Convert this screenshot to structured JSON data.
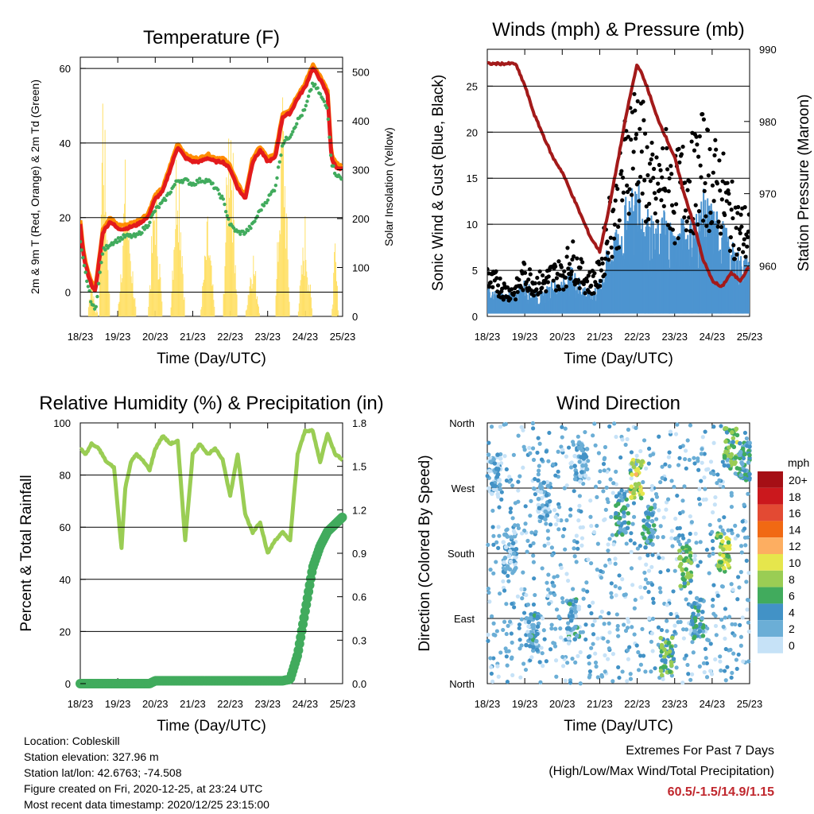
{
  "x_ticks": [
    "18/23",
    "19/23",
    "20/23",
    "21/23",
    "22/23",
    "23/23",
    "24/23",
    "25/23"
  ],
  "chart_data": [
    {
      "id": "temperature",
      "type": "line",
      "title": "Temperature (F)",
      "xlabel": "Time (Day/UTC)",
      "ylabel": "2m & 9m T (Red, Orange) & 2m Td (Green)",
      "ylabel_right": "Solar Insolation (Yellow)",
      "ylim": [
        -6.5,
        63
      ],
      "yticks": [
        0,
        20,
        40,
        60
      ],
      "ylim_right": [
        0,
        530
      ],
      "yticks_right": [
        0,
        100,
        200,
        300,
        400,
        500
      ],
      "gridlines": [
        0,
        20,
        40,
        60
      ],
      "x": [
        0,
        0.1,
        0.2,
        0.3,
        0.4,
        0.5,
        0.6,
        0.8,
        1,
        1.2,
        1.5,
        1.8,
        2,
        2.2,
        2.4,
        2.6,
        2.8,
        3,
        3.2,
        3.4,
        3.6,
        3.8,
        4,
        4.2,
        4.4,
        4.6,
        4.8,
        5,
        5.2,
        5.4,
        5.6,
        5.8,
        6,
        6.2,
        6.35,
        6.5,
        6.6,
        6.7,
        6.8,
        6.9,
        7
      ],
      "series": [
        {
          "name": "2m T",
          "color": "#e31a1c",
          "values": [
            18,
            9,
            5,
            2,
            0,
            8,
            16,
            19,
            17,
            17,
            18,
            20,
            25,
            27,
            33,
            39,
            36,
            35,
            35,
            36,
            35,
            35,
            33,
            28,
            25,
            35,
            38,
            35,
            36,
            47,
            48,
            52,
            55,
            60,
            58,
            55,
            53,
            36,
            34,
            33,
            33
          ]
        },
        {
          "name": "9m T",
          "color": "#ff8c00",
          "values": [
            19,
            10,
            6,
            3,
            1,
            9,
            17,
            20,
            18,
            18,
            19,
            21,
            26,
            28,
            34,
            40,
            37,
            36,
            36,
            37,
            36,
            36,
            34,
            29,
            26,
            36,
            39,
            36,
            37,
            48,
            49,
            53,
            56,
            61,
            59,
            56,
            54,
            37,
            35,
            34,
            34
          ]
        },
        {
          "name": "2m Td",
          "color": "#41ab5d",
          "values": [
            13,
            7,
            2,
            -3,
            -5,
            3,
            11,
            13,
            14,
            15,
            15,
            18,
            22,
            24,
            27,
            30,
            30,
            29,
            30,
            30,
            28,
            25,
            18,
            16,
            16,
            18,
            22,
            25,
            28,
            40,
            42,
            46,
            49,
            56,
            54,
            51,
            49,
            35,
            32,
            31,
            30
          ]
        },
        {
          "name": "Solar Insolation",
          "color": "#ffe066",
          "axis": "right",
          "values": [
            0,
            0,
            0,
            100,
            20,
            0,
            500,
            0,
            0,
            300,
            0,
            0,
            300,
            0,
            0,
            420,
            0,
            0,
            0,
            200,
            0,
            0,
            520,
            0,
            0,
            150,
            0,
            0,
            0,
            470,
            0,
            0,
            200,
            0,
            0,
            0,
            0,
            0,
            150,
            0,
            0
          ]
        }
      ]
    },
    {
      "id": "winds",
      "type": "scatter",
      "title": "Winds (mph) & Pressure (mb)",
      "xlabel": "Time (Day/UTC)",
      "ylabel": "Sonic Wind & Gust (Blue, Black)",
      "ylabel_right": "Station Pressure (Maroon)",
      "ylim": [
        0,
        29
      ],
      "yticks": [
        0,
        5,
        10,
        15,
        20,
        25
      ],
      "ylim_right": [
        953,
        990
      ],
      "yticks_right": [
        960,
        970,
        980,
        990
      ],
      "gridlines": [
        5,
        10,
        15,
        20,
        25
      ],
      "x": [
        0,
        0.1,
        0.25,
        0.5,
        0.75,
        1,
        1.25,
        1.5,
        1.75,
        2,
        2.25,
        2.5,
        2.75,
        3,
        3.25,
        3.5,
        3.75,
        4,
        4.25,
        4.5,
        4.75,
        5,
        5.25,
        5.5,
        5.75,
        6,
        6.25,
        6.5,
        6.75,
        7
      ],
      "series": [
        {
          "name": "Sonic Wind",
          "color": "#4d94d0",
          "values": [
            3,
            2,
            2,
            2,
            2,
            3,
            2,
            2,
            3,
            3,
            4,
            3,
            2,
            3,
            6,
            7,
            10,
            11,
            9,
            7,
            9,
            7,
            8,
            8,
            10,
            9,
            8,
            6,
            5,
            5
          ]
        },
        {
          "name": "Gust",
          "color": "#000000",
          "values": [
            5,
            4,
            4,
            3,
            3,
            5,
            4,
            4,
            5,
            5,
            7,
            5,
            4,
            5,
            11,
            13,
            20,
            22,
            17,
            14,
            17,
            14,
            16,
            16,
            18,
            16,
            15,
            12,
            10,
            10
          ]
        },
        {
          "name": "Station Pressure",
          "color": "#a31a1a",
          "axis": "right",
          "values": [
            988,
            988,
            988,
            988,
            988,
            985,
            981,
            978,
            975,
            973,
            970,
            967,
            964,
            962,
            968,
            975,
            982,
            988,
            985,
            981,
            978,
            975,
            970,
            966,
            961,
            958,
            957,
            959,
            958,
            960
          ]
        }
      ]
    },
    {
      "id": "humidity",
      "type": "line",
      "title": "Relative Humidity (%) & Precipitation (in)",
      "xlabel": "Time (Day/UTC)",
      "ylabel": "Percent & Total Rainfall",
      "ylim": [
        0,
        100
      ],
      "yticks": [
        0,
        20,
        40,
        60,
        80,
        100
      ],
      "ylim_right": [
        0,
        1.8
      ],
      "yticks_right": [
        0.0,
        0.3,
        0.6,
        0.9,
        1.2,
        1.5,
        1.8
      ],
      "gridlines": [
        20,
        40,
        60,
        80
      ],
      "x": [
        0,
        0.15,
        0.3,
        0.5,
        0.7,
        0.9,
        1.1,
        1.2,
        1.35,
        1.5,
        1.7,
        1.85,
        2,
        2.2,
        2.4,
        2.6,
        2.8,
        3,
        3.2,
        3.4,
        3.6,
        3.8,
        4,
        4.2,
        4.4,
        4.6,
        4.8,
        5,
        5.2,
        5.4,
        5.6,
        5.8,
        6,
        6.2,
        6.4,
        6.6,
        6.8,
        7
      ],
      "series": [
        {
          "name": "Relative Humidity",
          "color": "#9acd54",
          "values": [
            90,
            88,
            92,
            90,
            85,
            83,
            52,
            75,
            85,
            88,
            85,
            82,
            90,
            95,
            92,
            93,
            55,
            88,
            92,
            88,
            90,
            86,
            72,
            88,
            65,
            58,
            62,
            50,
            55,
            58,
            55,
            88,
            97,
            97,
            85,
            96,
            88,
            86
          ]
        },
        {
          "name": "Total Precipitation",
          "color": "#41ab5d",
          "axis": "right",
          "values": [
            0,
            0,
            0,
            0,
            0,
            0,
            0,
            0,
            0,
            0,
            0,
            0,
            0.02,
            0.02,
            0.02,
            0.02,
            0.02,
            0.02,
            0.02,
            0.02,
            0.02,
            0.02,
            0.02,
            0.02,
            0.02,
            0.02,
            0.02,
            0.02,
            0.02,
            0.02,
            0.03,
            0.2,
            0.5,
            0.8,
            0.95,
            1.05,
            1.1,
            1.15
          ]
        }
      ]
    },
    {
      "id": "wind_direction",
      "type": "scatter",
      "title": "Wind Direction",
      "xlabel": "Time (Day/UTC)",
      "ylabel": "Direction (Colored By Speed)",
      "yticks": [
        "North",
        "East",
        "South",
        "West",
        "North"
      ],
      "legend_title": "mph",
      "legend_labels": [
        "20+",
        "18",
        "16",
        "14",
        "12",
        "10",
        "8",
        "6",
        "4",
        "2",
        "0"
      ],
      "legend_colors": [
        "#a50f15",
        "#cb181d",
        "#e34a33",
        "#f16913",
        "#fdae61",
        "#e6e64c",
        "#9acd54",
        "#41ab5d",
        "#4292c6",
        "#6baed6",
        "#c6e2f7"
      ],
      "clusters": [
        {
          "day": 0.2,
          "dir": 0.8,
          "speed": 2
        },
        {
          "day": 0.6,
          "dir": 0.5,
          "speed": 2
        },
        {
          "day": 1.2,
          "dir": 0.2,
          "speed": 3
        },
        {
          "day": 1.5,
          "dir": 0.7,
          "speed": 2
        },
        {
          "day": 2.3,
          "dir": 0.25,
          "speed": 3
        },
        {
          "day": 2.5,
          "dir": 0.85,
          "speed": 2
        },
        {
          "day": 3.6,
          "dir": 0.65,
          "speed": 4
        },
        {
          "day": 4.0,
          "dir": 0.78,
          "speed": 9
        },
        {
          "day": 4.3,
          "dir": 0.6,
          "speed": 4
        },
        {
          "day": 4.8,
          "dir": 0.1,
          "speed": 6
        },
        {
          "day": 5.3,
          "dir": 0.45,
          "speed": 7
        },
        {
          "day": 5.6,
          "dir": 0.25,
          "speed": 4
        },
        {
          "day": 6.3,
          "dir": 0.5,
          "speed": 8
        },
        {
          "day": 6.5,
          "dir": 0.9,
          "speed": 7
        },
        {
          "day": 6.9,
          "dir": 0.85,
          "speed": 4
        }
      ]
    }
  ],
  "footer": {
    "location": "Location: Cobleskill",
    "elevation": "Station elevation: 327.96 m",
    "latlon": "Station lat/lon: 42.6763; -74.508",
    "created": "Figure created on Fri, 2020-12-25, at 23:24 UTC",
    "recent": "Most recent data timestamp: 2020/12/25 23:15:00"
  },
  "extremes": {
    "title": "Extremes For Past 7 Days",
    "subtitle": "(High/Low/Max Wind/Total Precipitation)",
    "values": "60.5/-1.5/14.9/1.15"
  }
}
